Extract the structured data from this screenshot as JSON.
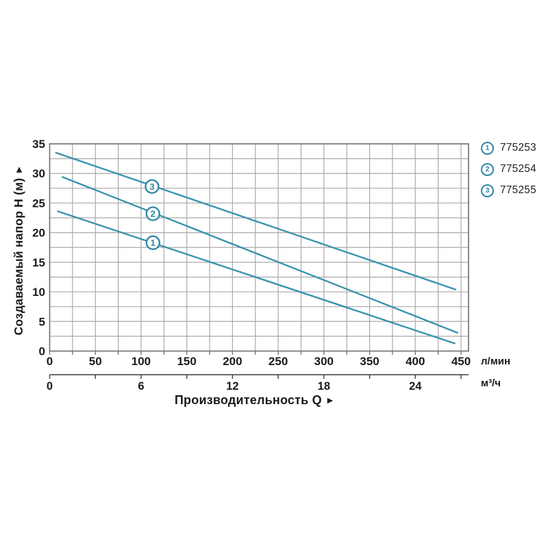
{
  "chart_data": {
    "type": "line",
    "title": "",
    "y_axis": {
      "label": "Создаваемый напор Н (м)",
      "arrow": "►",
      "ticks": [
        0,
        5,
        10,
        15,
        20,
        25,
        30,
        35
      ],
      "minor_step": 2.5,
      "range": [
        0,
        35
      ]
    },
    "x_axis": {
      "unit": "л/мин",
      "ticks": [
        0,
        50,
        100,
        150,
        200,
        250,
        300,
        350,
        400,
        450
      ],
      "minor_step": 25,
      "range": [
        0,
        458
      ]
    },
    "x_axis_secondary": {
      "unit": "м³/ч",
      "ticks": [
        0,
        6,
        12,
        18,
        24
      ],
      "minor_step": 3,
      "range": [
        0,
        27
      ]
    },
    "x_title": {
      "text": "Производительность Q",
      "arrow": "►"
    },
    "series": [
      {
        "id": "1",
        "article": "775253",
        "points": [
          [
            9,
            23.6
          ],
          [
            443,
            1.3
          ]
        ]
      },
      {
        "id": "2",
        "article": "775254",
        "points": [
          [
            14,
            29.4
          ],
          [
            446,
            3.1
          ]
        ]
      },
      {
        "id": "3",
        "article": "775255",
        "points": [
          [
            7,
            33.5
          ],
          [
            444,
            10.4
          ]
        ]
      }
    ],
    "curve_markers": [
      {
        "series": "1",
        "x": 113,
        "y": 18.3
      },
      {
        "series": "2",
        "x": 113,
        "y": 23.2
      },
      {
        "series": "3",
        "x": 112,
        "y": 27.8
      }
    ],
    "legend": [
      {
        "num": "1",
        "label": "775253"
      },
      {
        "num": "2",
        "label": "775254"
      },
      {
        "num": "3",
        "label": "775255"
      }
    ],
    "grid": true,
    "legend_position": "right",
    "colors": {
      "line": "#3a93ae",
      "marker_stroke": "#2f86a2",
      "grid": "#a9a9a9",
      "border": "#757575",
      "axis2": "#3c3c3c",
      "text": "#1b1b1b"
    }
  }
}
